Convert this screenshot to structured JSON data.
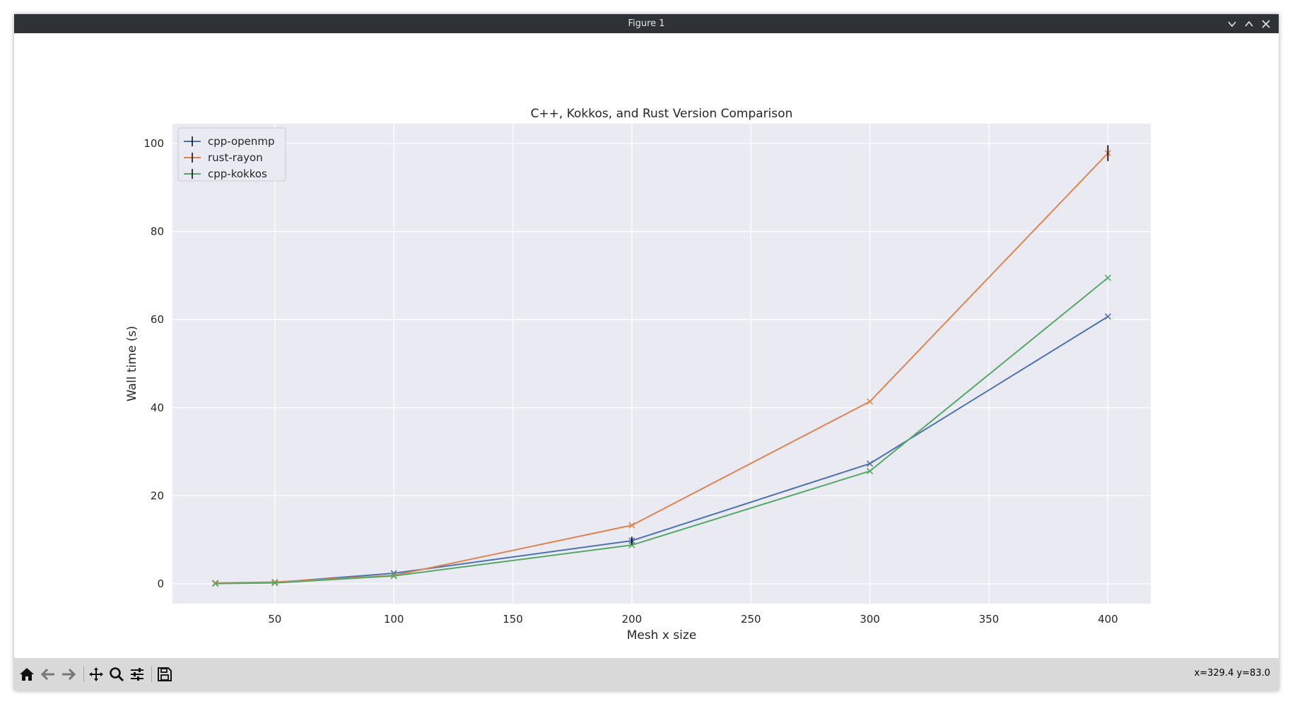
{
  "window": {
    "title": "Figure 1"
  },
  "toolbar": {
    "buttons": [
      "home-icon",
      "back-icon",
      "forward-icon",
      "pan-icon",
      "zoom-icon",
      "configure-icon",
      "save-icon"
    ],
    "coords": "x=329.4 y=83.0"
  },
  "colors": {
    "background": "#eaeaf2",
    "grid": "#ffffff",
    "cpp-openmp": "#4c72b0",
    "rust-rayon": "#dd8452",
    "cpp-kokkos": "#55a868"
  },
  "chart_data": {
    "type": "line",
    "title": "C++, Kokkos, and Rust Version Comparison",
    "xlabel": "Mesh x size",
    "ylabel": "Wall time (s)",
    "xlim": [
      7,
      418
    ],
    "ylim": [
      -4.5,
      104.5
    ],
    "xticks": [
      50,
      100,
      150,
      200,
      250,
      300,
      350,
      400
    ],
    "yticks": [
      0,
      20,
      40,
      60,
      80,
      100
    ],
    "grid": true,
    "legend_position": "upper left",
    "x": [
      25,
      50,
      100,
      200,
      300,
      400
    ],
    "series": [
      {
        "name": "cpp-openmp",
        "values": [
          0.1,
          0.3,
          2.4,
          9.8,
          27.3,
          60.7
        ]
      },
      {
        "name": "rust-rayon",
        "values": [
          0.2,
          0.4,
          1.9,
          13.3,
          41.4,
          97.8
        ]
      },
      {
        "name": "cpp-kokkos",
        "values": [
          0.05,
          0.2,
          1.8,
          8.8,
          25.6,
          69.5
        ]
      }
    ],
    "errorbars": [
      {
        "series": "cpp-openmp",
        "x": 200,
        "err": 0.9
      },
      {
        "series": "rust-rayon",
        "x": 400,
        "err": 1.8
      }
    ]
  }
}
